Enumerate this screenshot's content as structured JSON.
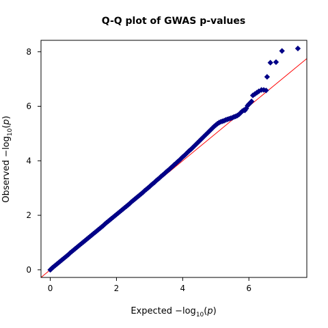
{
  "chart_data": {
    "type": "scatter",
    "title": "Q-Q plot of GWAS p-values",
    "xlabel": {
      "prefix": "Expected  −log",
      "sub": "10",
      "suffix": "(",
      "var": "p",
      "close": ")"
    },
    "ylabel": {
      "prefix": "Observed  −log",
      "sub": "10",
      "suffix": "(",
      "var": "p",
      "close": ")"
    },
    "xlim": [
      -0.28,
      7.75
    ],
    "ylim": [
      -0.28,
      8.42
    ],
    "x_ticks": [
      0,
      2,
      4,
      6
    ],
    "y_ticks": [
      0,
      2,
      4,
      6,
      8
    ],
    "grid": false,
    "reference_line": {
      "color": "#ff0000",
      "intercept": 0,
      "slope": 1
    },
    "point_color": "#00008b",
    "point_stroke": "#000080",
    "points": [
      [
        0.0,
        0.0
      ],
      [
        0.03,
        0.03
      ],
      [
        0.06,
        0.07
      ],
      [
        0.1,
        0.11
      ],
      [
        0.15,
        0.16
      ],
      [
        0.2,
        0.21
      ],
      [
        0.25,
        0.26
      ],
      [
        0.3,
        0.31
      ],
      [
        0.35,
        0.36
      ],
      [
        0.4,
        0.41
      ],
      [
        0.45,
        0.46
      ],
      [
        0.5,
        0.51
      ],
      [
        0.55,
        0.56
      ],
      [
        0.6,
        0.62
      ],
      [
        0.65,
        0.67
      ],
      [
        0.7,
        0.72
      ],
      [
        0.75,
        0.77
      ],
      [
        0.8,
        0.82
      ],
      [
        0.85,
        0.87
      ],
      [
        0.9,
        0.92
      ],
      [
        0.95,
        0.97
      ],
      [
        1.0,
        1.02
      ],
      [
        1.05,
        1.07
      ],
      [
        1.1,
        1.12
      ],
      [
        1.15,
        1.17
      ],
      [
        1.2,
        1.22
      ],
      [
        1.25,
        1.27
      ],
      [
        1.3,
        1.32
      ],
      [
        1.35,
        1.37
      ],
      [
        1.4,
        1.42
      ],
      [
        1.45,
        1.47
      ],
      [
        1.5,
        1.52
      ],
      [
        1.55,
        1.57
      ],
      [
        1.6,
        1.62
      ],
      [
        1.65,
        1.68
      ],
      [
        1.7,
        1.73
      ],
      [
        1.75,
        1.78
      ],
      [
        1.8,
        1.83
      ],
      [
        1.85,
        1.88
      ],
      [
        1.9,
        1.93
      ],
      [
        1.95,
        1.98
      ],
      [
        2.0,
        2.03
      ],
      [
        2.05,
        2.08
      ],
      [
        2.1,
        2.13
      ],
      [
        2.15,
        2.18
      ],
      [
        2.2,
        2.23
      ],
      [
        2.25,
        2.28
      ],
      [
        2.3,
        2.33
      ],
      [
        2.35,
        2.38
      ],
      [
        2.4,
        2.43
      ],
      [
        2.45,
        2.49
      ],
      [
        2.5,
        2.54
      ],
      [
        2.55,
        2.59
      ],
      [
        2.6,
        2.64
      ],
      [
        2.65,
        2.69
      ],
      [
        2.7,
        2.74
      ],
      [
        2.75,
        2.79
      ],
      [
        2.8,
        2.84
      ],
      [
        2.85,
        2.9
      ],
      [
        2.9,
        2.95
      ],
      [
        2.95,
        3.0
      ],
      [
        3.0,
        3.05
      ],
      [
        3.05,
        3.11
      ],
      [
        3.1,
        3.16
      ],
      [
        3.15,
        3.21
      ],
      [
        3.2,
        3.27
      ],
      [
        3.25,
        3.32
      ],
      [
        3.3,
        3.37
      ],
      [
        3.35,
        3.43
      ],
      [
        3.4,
        3.48
      ],
      [
        3.45,
        3.53
      ],
      [
        3.5,
        3.59
      ],
      [
        3.55,
        3.64
      ],
      [
        3.6,
        3.69
      ],
      [
        3.65,
        3.75
      ],
      [
        3.7,
        3.8
      ],
      [
        3.75,
        3.86
      ],
      [
        3.8,
        3.91
      ],
      [
        3.85,
        3.97
      ],
      [
        3.9,
        4.02
      ],
      [
        3.95,
        4.08
      ],
      [
        4.0,
        4.14
      ],
      [
        4.05,
        4.19
      ],
      [
        4.1,
        4.25
      ],
      [
        4.15,
        4.31
      ],
      [
        4.2,
        4.37
      ],
      [
        4.25,
        4.42
      ],
      [
        4.3,
        4.48
      ],
      [
        4.35,
        4.54
      ],
      [
        4.4,
        4.6
      ],
      [
        4.45,
        4.66
      ],
      [
        4.5,
        4.72
      ],
      [
        4.55,
        4.78
      ],
      [
        4.6,
        4.84
      ],
      [
        4.65,
        4.9
      ],
      [
        4.7,
        4.96
      ],
      [
        4.75,
        5.02
      ],
      [
        4.8,
        5.08
      ],
      [
        4.85,
        5.14
      ],
      [
        4.9,
        5.2
      ],
      [
        4.95,
        5.26
      ],
      [
        5.0,
        5.31
      ],
      [
        5.05,
        5.36
      ],
      [
        5.1,
        5.4
      ],
      [
        5.15,
        5.43
      ],
      [
        5.2,
        5.45
      ],
      [
        5.25,
        5.47
      ],
      [
        5.3,
        5.5
      ],
      [
        5.35,
        5.52
      ],
      [
        5.4,
        5.54
      ],
      [
        5.45,
        5.56
      ],
      [
        5.5,
        5.58
      ],
      [
        5.55,
        5.61
      ],
      [
        5.6,
        5.63
      ],
      [
        5.65,
        5.66
      ],
      [
        5.7,
        5.7
      ],
      [
        5.75,
        5.76
      ],
      [
        5.8,
        5.82
      ],
      [
        5.85,
        5.86
      ],
      [
        5.88,
        5.85
      ],
      [
        5.92,
        5.92
      ],
      [
        5.96,
        6.02
      ],
      [
        6.0,
        6.08
      ],
      [
        6.04,
        6.12
      ],
      [
        6.08,
        6.18
      ],
      [
        6.12,
        6.4
      ],
      [
        6.18,
        6.45
      ],
      [
        6.24,
        6.5
      ],
      [
        6.3,
        6.55
      ],
      [
        6.38,
        6.6
      ],
      [
        6.45,
        6.6
      ],
      [
        6.52,
        6.58
      ],
      [
        6.55,
        7.08
      ],
      [
        6.65,
        7.6
      ],
      [
        6.82,
        7.62
      ],
      [
        7.0,
        8.03
      ],
      [
        7.48,
        8.12
      ]
    ]
  }
}
